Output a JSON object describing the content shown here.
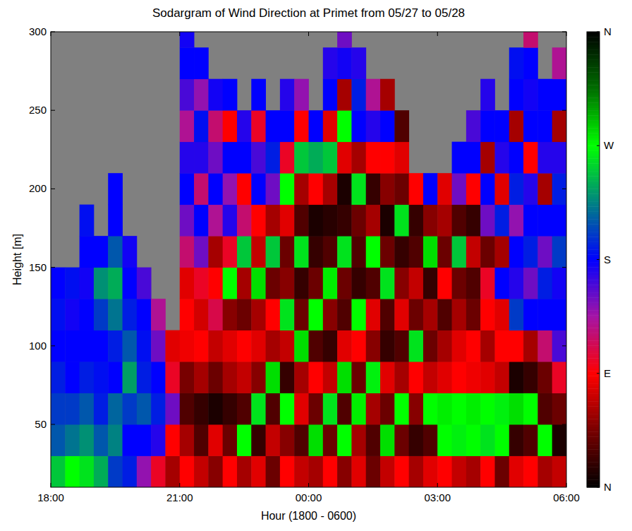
{
  "chart_data": {
    "type": "heatmap",
    "title": "Sodargram of Wind Direction at Primet from 05/27 to 05/28",
    "x_label": "Hour (1800 - 0600)",
    "y_label": "Height [m]",
    "xlim": [
      0,
      720
    ],
    "xticks": [
      {
        "value": 0,
        "label": "18:00"
      },
      {
        "value": 180,
        "label": "21:00"
      },
      {
        "value": 360,
        "label": "00:00"
      },
      {
        "value": 540,
        "label": "03:00"
      },
      {
        "value": 720,
        "label": "06:00"
      }
    ],
    "ylim": [
      10,
      300
    ],
    "yticks": [
      50,
      100,
      150,
      200,
      250,
      300
    ],
    "x": [
      10,
      30,
      50,
      70,
      90,
      110,
      130,
      150,
      170,
      190,
      210,
      230,
      250,
      270,
      290,
      310,
      330,
      350,
      370,
      390,
      410,
      430,
      450,
      470,
      490,
      510,
      530,
      550,
      570,
      590,
      610,
      630,
      650,
      670,
      690,
      710
    ],
    "y": [
      20,
      40,
      60,
      80,
      100,
      120,
      140,
      160,
      180,
      200,
      220,
      240,
      260,
      280,
      300
    ],
    "cells": [
      [
        250,
        270,
        260,
        240,
        200,
        190,
        140,
        100,
        60,
        90,
        70,
        50,
        90,
        60,
        80,
        40,
        90,
        70,
        60,
        90,
        50,
        80,
        40,
        70,
        90,
        60,
        80,
        90,
        70,
        60,
        90,
        40,
        80,
        90,
        60,
        70
      ],
      [
        210,
        220,
        230,
        210,
        225,
        180,
        180,
        170,
        90,
        60,
        30,
        80,
        40,
        270,
        20,
        70,
        50,
        30,
        280,
        40,
        270,
        60,
        30,
        280,
        40,
        20,
        30,
        270,
        265,
        270,
        260,
        270,
        20,
        30,
        270,
        10
      ],
      [
        200,
        200,
        210,
        190,
        215,
        200,
        210,
        190,
        150,
        30,
        20,
        10,
        20,
        30,
        260,
        30,
        270,
        80,
        40,
        260,
        30,
        275,
        60,
        40,
        270,
        50,
        270,
        275,
        270,
        275,
        270,
        265,
        280,
        270,
        30,
        40
      ],
      [
        190,
        180,
        190,
        185,
        180,
        235,
        190,
        180,
        100,
        45,
        60,
        40,
        60,
        70,
        50,
        280,
        20,
        60,
        90,
        70,
        280,
        40,
        265,
        80,
        60,
        90,
        70,
        80,
        90,
        85,
        80,
        70,
        10,
        20,
        40,
        100
      ],
      [
        180,
        180,
        180,
        180,
        190,
        210,
        185,
        150,
        80,
        85,
        90,
        70,
        80,
        90,
        80,
        60,
        70,
        280,
        30,
        20,
        80,
        90,
        50,
        20,
        30,
        260,
        40,
        60,
        80,
        90,
        60,
        90,
        90,
        60,
        120,
        160
      ],
      [
        185,
        175,
        180,
        200,
        220,
        190,
        180,
        130,
        null,
        90,
        75,
        110,
        50,
        40,
        60,
        90,
        260,
        40,
        270,
        50,
        30,
        270,
        80,
        30,
        80,
        40,
        60,
        30,
        60,
        40,
        90,
        80,
        200,
        180,
        180,
        180
      ],
      [
        180,
        185,
        175,
        230,
        240,
        180,
        160,
        null,
        null,
        80,
        100,
        90,
        270,
        60,
        280,
        40,
        50,
        20,
        40,
        275,
        40,
        20,
        30,
        260,
        50,
        70,
        20,
        90,
        40,
        30,
        100,
        180,
        170,
        150,
        190,
        175
      ],
      [
        null,
        null,
        180,
        180,
        210,
        175,
        null,
        null,
        null,
        120,
        150,
        60,
        100,
        250,
        70,
        250,
        40,
        260,
        20,
        30,
        260,
        30,
        270,
        40,
        20,
        30,
        280,
        40,
        250,
        70,
        40,
        60,
        180,
        190,
        150,
        200
      ],
      [
        null,
        null,
        185,
        null,
        180,
        null,
        null,
        null,
        null,
        150,
        180,
        130,
        170,
        120,
        90,
        60,
        80,
        30,
        10,
        15,
        20,
        40,
        60,
        10,
        260,
        20,
        50,
        60,
        30,
        20,
        150,
        190,
        140,
        180,
        180,
        180
      ],
      [
        null,
        null,
        null,
        null,
        180,
        null,
        null,
        null,
        null,
        180,
        120,
        180,
        140,
        90,
        180,
        150,
        270,
        60,
        90,
        60,
        10,
        260,
        20,
        50,
        40,
        90,
        180,
        80,
        150,
        90,
        180,
        80,
        190,
        170,
        60,
        190
      ],
      [
        null,
        null,
        null,
        null,
        null,
        null,
        null,
        null,
        null,
        170,
        170,
        150,
        180,
        180,
        160,
        190,
        100,
        250,
        240,
        250,
        80,
        60,
        90,
        90,
        80,
        null,
        null,
        null,
        180,
        180,
        60,
        170,
        180,
        90,
        170,
        170
      ],
      [
        null,
        null,
        null,
        null,
        null,
        null,
        null,
        null,
        null,
        130,
        185,
        120,
        90,
        170,
        100,
        180,
        180,
        90,
        180,
        80,
        270,
        180,
        170,
        180,
        30,
        null,
        null,
        null,
        null,
        160,
        180,
        180,
        60,
        180,
        180,
        60
      ],
      [
        null,
        null,
        null,
        null,
        null,
        null,
        null,
        null,
        null,
        160,
        140,
        175,
        180,
        null,
        180,
        null,
        170,
        140,
        null,
        180,
        60,
        190,
        130,
        60,
        null,
        null,
        null,
        null,
        null,
        null,
        170,
        null,
        180,
        175,
        180,
        180
      ],
      [
        null,
        null,
        null,
        null,
        null,
        null,
        null,
        null,
        null,
        180,
        180,
        null,
        null,
        null,
        null,
        null,
        null,
        null,
        null,
        170,
        175,
        170,
        null,
        null,
        null,
        null,
        null,
        null,
        null,
        null,
        null,
        null,
        185,
        180,
        null,
        130
      ],
      [
        null,
        null,
        null,
        null,
        null,
        null,
        null,
        null,
        null,
        175,
        null,
        null,
        null,
        null,
        null,
        null,
        null,
        null,
        null,
        null,
        150,
        null,
        null,
        null,
        null,
        null,
        null,
        null,
        null,
        null,
        null,
        null,
        null,
        120,
        null,
        null
      ]
    ],
    "colorbar": {
      "range": [
        0,
        360
      ],
      "ticks": [
        {
          "value": 0,
          "label": "N"
        },
        {
          "value": 90,
          "label": "E"
        },
        {
          "value": 180,
          "label": "S"
        },
        {
          "value": 270,
          "label": "W"
        },
        {
          "value": 360,
          "label": "N"
        }
      ]
    }
  }
}
